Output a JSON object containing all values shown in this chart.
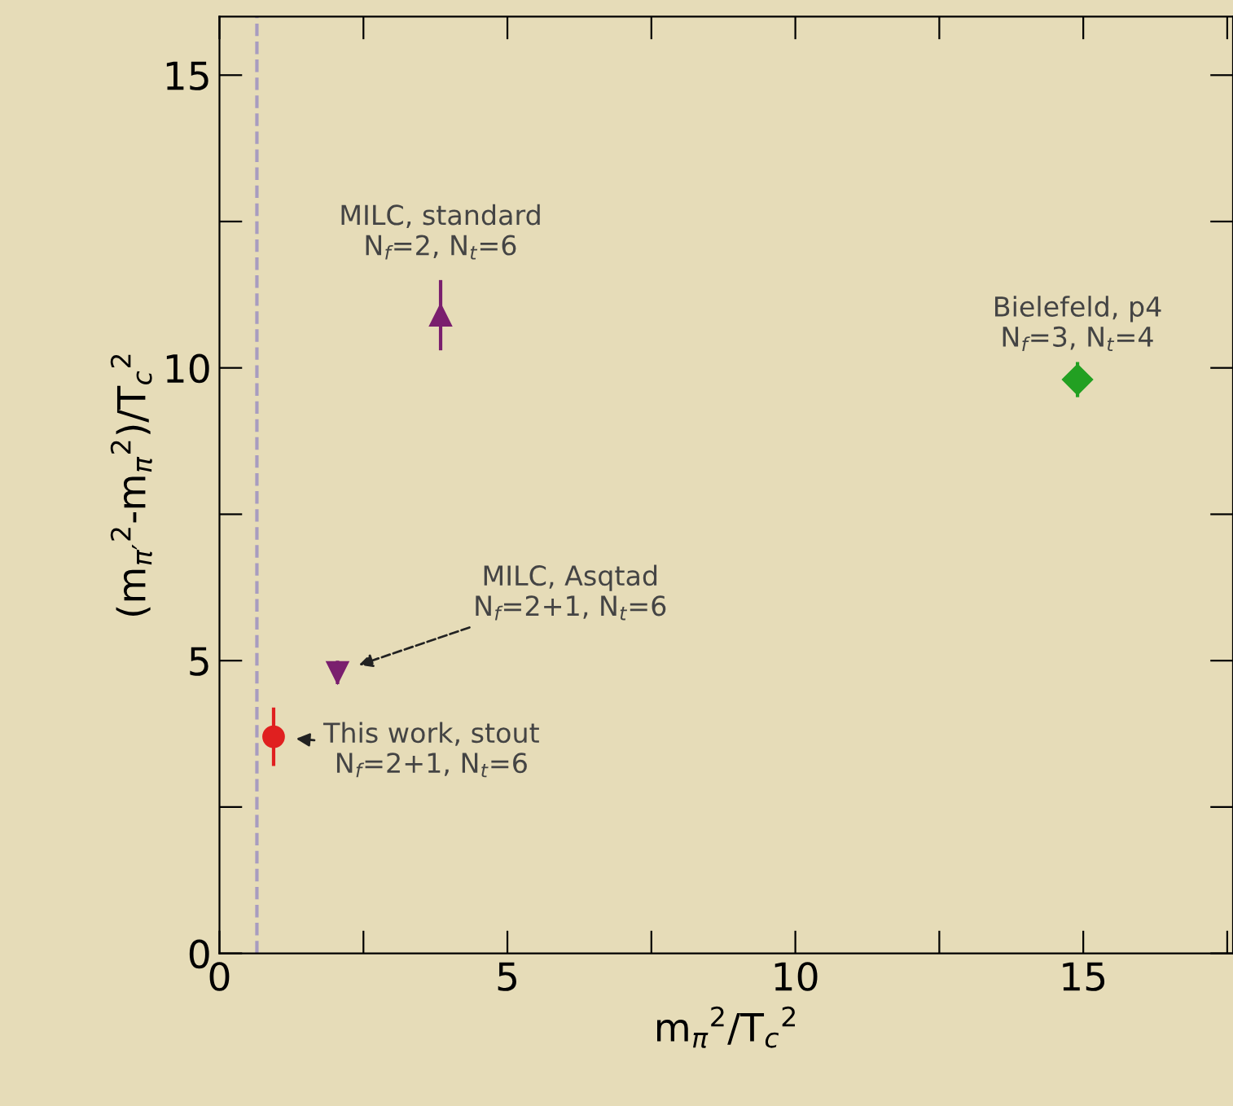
{
  "chart_data": {
    "type": "scatter",
    "xlabel": "m$_{π}$$^{2}$/T$_{c}$$^{2}$",
    "ylabel": "(m$_{π′}$$^{2}$-m$_{π}$$^{2}$)/T$_{c}$$^{2}$",
    "xlim": [
      0,
      17.6
    ],
    "ylim": [
      0,
      16
    ],
    "xticks": [
      0,
      {
        "value": 2.5,
        "label": null
      },
      5,
      {
        "value": 7.5,
        "label": null
      },
      10,
      {
        "value": 12.5,
        "label": null
      },
      15,
      {
        "value": 17.5,
        "label": null
      }
    ],
    "yticks": [
      0,
      {
        "value": 2.5,
        "label": null
      },
      5,
      {
        "value": 7.5,
        "label": null
      },
      10,
      {
        "value": 12.5,
        "label": null
      },
      15
    ],
    "series": [
      {
        "name": "This work, stout\nN$_{f}$=2+1, N$_{t}$=6",
        "x": [
          0.94
        ],
        "values": [
          3.7
        ],
        "errors": [
          0.5
        ],
        "color": "#e02020",
        "marker": "circle"
      },
      {
        "name": "MILC, Asqtad\nN$_{f}$=2+1, N$_{t}$=6",
        "x": [
          2.05
        ],
        "values": [
          4.8
        ],
        "errors": [
          0.2
        ],
        "color": "#7a1f6e",
        "marker": "triangle_down"
      },
      {
        "name": "MILC, standard\nN$_{f}$=2, N$_{t}$=6",
        "x": [
          3.84
        ],
        "values": [
          10.9
        ],
        "errors": [
          0.6
        ],
        "color": "#7a1f6e",
        "marker": "triangle"
      },
      {
        "name": "Bielefeld, p4\nN$_{f}$=3, N$_{t}$=4",
        "x": [
          14.9
        ],
        "values": [
          9.8
        ],
        "errors": [
          0.3
        ],
        "color": "#22a022",
        "marker": "diamond"
      }
    ],
    "ref_lines": [
      {
        "axis": "x",
        "value": 0.65,
        "label": null,
        "color": "#a89cc0",
        "line_style": "dashed"
      }
    ]
  }
}
